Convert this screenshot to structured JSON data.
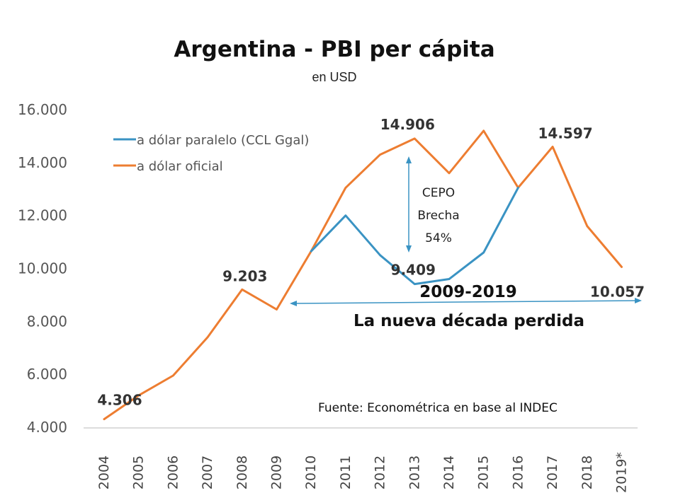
{
  "chart_data": {
    "type": "line",
    "title": "Argentina - PBI per cápita",
    "subtitle": "en USD",
    "categories": [
      "2004",
      "2005",
      "2006",
      "2007",
      "2008",
      "2009",
      "2010",
      "2011",
      "2012",
      "2013",
      "2014",
      "2015",
      "2016",
      "2017",
      "2018",
      "2019*"
    ],
    "ylim": [
      4000,
      16000
    ],
    "yticks": [
      "4.000",
      "6.000",
      "8.000",
      "10.000",
      "12.000",
      "14.000",
      "16.000"
    ],
    "grid": false,
    "legend_position": "top-left",
    "series": [
      {
        "name": "a dólar paralelo (CCL Ggal)",
        "color": "#3a93c3",
        "values": [
          null,
          null,
          null,
          null,
          null,
          null,
          10650,
          12000,
          10500,
          9409,
          9600,
          10600,
          13050,
          null,
          null,
          null
        ]
      },
      {
        "name": "a dólar oficial",
        "color": "#ed7d31",
        "values": [
          4306,
          5200,
          5950,
          7400,
          9203,
          8450,
          10650,
          13050,
          14300,
          14906,
          13600,
          15200,
          13050,
          14597,
          11600,
          10057
        ]
      }
    ],
    "data_labels": [
      {
        "category": "2004",
        "series": 1,
        "text": "4.306"
      },
      {
        "category": "2008",
        "series": 1,
        "text": "9.203"
      },
      {
        "category": "2013",
        "series": 1,
        "text": "14.906"
      },
      {
        "category": "2013",
        "series": 0,
        "text": "9.409"
      },
      {
        "category": "2017",
        "series": 1,
        "text": "14.597"
      },
      {
        "category": "2019*",
        "series": 1,
        "text": "10.057"
      }
    ],
    "annotations": {
      "cepo_lines": [
        "CEPO",
        "Brecha",
        "54%"
      ],
      "period": "2009-2019",
      "decade": "La nueva década perdida",
      "source": "Fuente: Econométrica en base al INDEC"
    }
  }
}
